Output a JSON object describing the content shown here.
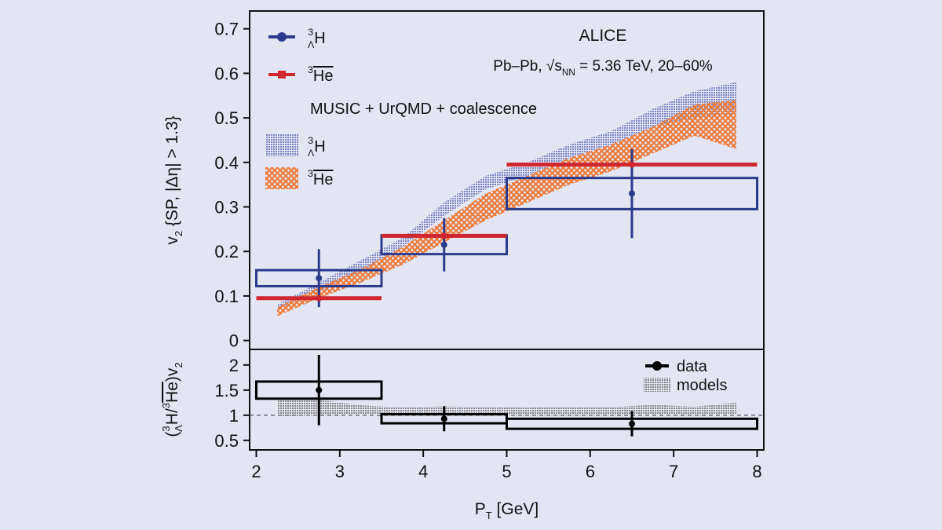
{
  "chart_data": [
    {
      "type": "errorbar",
      "title": "ALICE",
      "subtitle": [
        {
          "text": "Pb–Pb, √"
        },
        {
          "text": "s"
        },
        {
          "text": "NN",
          "style": "sub"
        },
        {
          "text": " = 5.36 TeV, 20–60%"
        }
      ],
      "ylabel": [
        {
          "text": "v"
        },
        {
          "text": "2",
          "style": "sub"
        },
        {
          "text": " {SP, |Δη| > 1.3}"
        }
      ],
      "bins": [
        2,
        3.5,
        5,
        8
      ],
      "x": [
        2.75,
        4.25,
        6.5
      ],
      "series": [
        {
          "name": [
            {
              "text": "3",
              "style": "sup"
            },
            {
              "text": "Λ",
              "style": "stack"
            },
            {
              "text": "H"
            }
          ],
          "color": "#2b3a8c",
          "style": "box",
          "values": [
            0.14,
            0.215,
            0.33
          ],
          "errors": [
            0.065,
            0.06,
            0.1
          ],
          "syst": [
            0.018,
            0.021,
            0.035
          ]
        },
        {
          "name": [
            {
              "text": "3",
              "style": "sup"
            },
            {
              "text": "He",
              "style": "over"
            }
          ],
          "color": "#d0262f",
          "style": "line",
          "values": [
            0.095,
            0.235,
            0.395
          ]
        }
      ],
      "model_label": "MUSIC + UrQMD + coalescence",
      "model_x": [
        2.25,
        2.75,
        3.25,
        3.75,
        4.25,
        4.75,
        5.25,
        5.75,
        6.25,
        6.75,
        7.25,
        7.75
      ],
      "bands": [
        {
          "name": [
            {
              "text": "3",
              "style": "sup"
            },
            {
              "text": "Λ",
              "style": "stack"
            },
            {
              "text": "H"
            }
          ],
          "color": "#7f86c4",
          "pattern": "dots",
          "upper": [
            0.08,
            0.13,
            0.18,
            0.23,
            0.31,
            0.37,
            0.4,
            0.44,
            0.47,
            0.52,
            0.56,
            0.58
          ],
          "lower": [
            0.07,
            0.11,
            0.155,
            0.21,
            0.28,
            0.34,
            0.37,
            0.41,
            0.44,
            0.48,
            0.5,
            0.51
          ]
        },
        {
          "name": [
            {
              "text": "3",
              "style": "sup"
            },
            {
              "text": "He",
              "style": "over"
            }
          ],
          "color": "#ee7b3a",
          "pattern": "cross",
          "upper": [
            0.075,
            0.12,
            0.16,
            0.21,
            0.27,
            0.33,
            0.37,
            0.41,
            0.44,
            0.48,
            0.53,
            0.54
          ],
          "lower": [
            0.055,
            0.095,
            0.13,
            0.17,
            0.22,
            0.27,
            0.31,
            0.35,
            0.38,
            0.42,
            0.46,
            0.43
          ]
        }
      ],
      "xlim": [
        1.92,
        8.08
      ],
      "ylim": [
        -0.02,
        0.74
      ],
      "yticks": [
        0,
        0.1,
        0.2,
        0.3,
        0.4,
        0.5,
        0.6,
        0.7
      ]
    },
    {
      "type": "errorbar",
      "ylabel": [
        {
          "text": "("
        },
        {
          "text": "3",
          "style": "sup"
        },
        {
          "text": "Λ",
          "style": "stack"
        },
        {
          "text": "H/"
        },
        {
          "text": "3",
          "style": "sup"
        },
        {
          "text": "He",
          "style": "over"
        },
        {
          "text": ")v"
        },
        {
          "text": "2",
          "style": "sub"
        }
      ],
      "xlabel": [
        {
          "text": "P"
        },
        {
          "text": "T",
          "style": "sub"
        },
        {
          "text": " [GeV]"
        }
      ],
      "bins": [
        2,
        3.5,
        5,
        8
      ],
      "x": [
        2.75,
        4.25,
        6.5
      ],
      "series": [
        {
          "name": [
            {
              "text": "data"
            }
          ],
          "color": "#000000",
          "style": "box",
          "values": [
            1.5,
            0.93,
            0.83
          ],
          "errors": [
            0.7,
            0.25,
            0.25
          ],
          "syst": [
            0.17,
            0.09,
            0.1
          ]
        }
      ],
      "model_x": [
        2.25,
        2.75,
        3.25,
        3.75,
        4.25,
        4.75,
        5.25,
        5.75,
        6.25,
        6.75,
        7.25,
        7.75
      ],
      "bands": [
        {
          "name": [
            {
              "text": "models"
            }
          ],
          "color": "#8a8a8a",
          "pattern": "dots",
          "upper": [
            1.32,
            1.3,
            1.2,
            1.15,
            1.18,
            1.16,
            1.15,
            1.17,
            1.16,
            1.21,
            1.17,
            1.25
          ],
          "lower": [
            0.97,
            1.0,
            1.02,
            1.0,
            1.0,
            1.0,
            1.0,
            1.0,
            1.0,
            1.02,
            1.0,
            1.02
          ]
        }
      ],
      "reference_line": 1,
      "xlim": [
        1.92,
        8.08
      ],
      "ylim": [
        0.31,
        2.31
      ],
      "yticks": [
        0.5,
        1,
        1.5,
        2
      ],
      "xticks": [
        2,
        3,
        4,
        5,
        6,
        7,
        8
      ]
    }
  ]
}
